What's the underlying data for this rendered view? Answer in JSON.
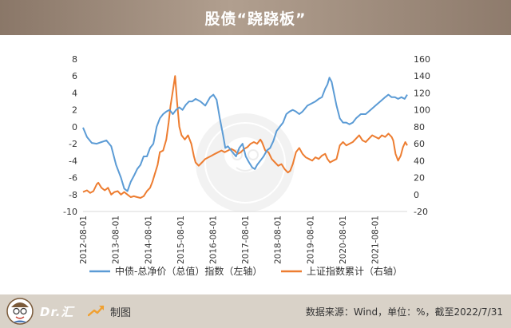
{
  "header": {
    "title": "股债“跷跷板”"
  },
  "footer": {
    "brand": "Dr.汇",
    "made_label": "制图",
    "source": "数据来源：Wind，单位：%，截至2022/7/31"
  },
  "colors": {
    "bond": "#5b9bd5",
    "stock": "#ed7d31",
    "header": "#9c8a7b",
    "footer": "#d9d2c8"
  },
  "chart_data": {
    "type": "line",
    "x_tick_labels": [
      "2012-08-01",
      "2013-08-01",
      "2014-08-01",
      "2015-08-01",
      "2016-08-01",
      "2017-08-01",
      "2018-08-01",
      "2019-08-01",
      "2020-08-01",
      "2021-08-01"
    ],
    "x_range": [
      2012.58,
      2022.58
    ],
    "y_left": {
      "range": [
        -10,
        8
      ],
      "ticks": [
        8,
        6,
        4,
        2,
        0,
        -2,
        -4,
        -6,
        -8,
        -10
      ]
    },
    "y_right": {
      "range": [
        -20,
        160
      ],
      "ticks": [
        160,
        140,
        120,
        100,
        80,
        60,
        40,
        20,
        0,
        -20
      ]
    },
    "grid": false,
    "legend_position": "bottom",
    "series": [
      {
        "name": "中债-总净价（总值）指数（左轴）",
        "axis": "left",
        "color": "#5b9bd5",
        "points": [
          [
            2012.58,
            -0.1
          ],
          [
            2012.7,
            -1.2
          ],
          [
            2012.85,
            -1.9
          ],
          [
            2013.0,
            -2.0
          ],
          [
            2013.15,
            -1.8
          ],
          [
            2013.3,
            -1.6
          ],
          [
            2013.45,
            -2.3
          ],
          [
            2013.6,
            -4.5
          ],
          [
            2013.75,
            -6.0
          ],
          [
            2013.85,
            -7.3
          ],
          [
            2013.95,
            -7.6
          ],
          [
            2014.05,
            -6.5
          ],
          [
            2014.15,
            -5.8
          ],
          [
            2014.25,
            -5.0
          ],
          [
            2014.35,
            -4.5
          ],
          [
            2014.45,
            -3.5
          ],
          [
            2014.55,
            -3.5
          ],
          [
            2014.65,
            -2.5
          ],
          [
            2014.75,
            -2.0
          ],
          [
            2014.85,
            0.0
          ],
          [
            2014.95,
            1.0
          ],
          [
            2015.05,
            1.5
          ],
          [
            2015.15,
            1.8
          ],
          [
            2015.25,
            2.0
          ],
          [
            2015.35,
            1.5
          ],
          [
            2015.45,
            2.0
          ],
          [
            2015.55,
            2.3
          ],
          [
            2015.65,
            2.0
          ],
          [
            2015.75,
            2.6
          ],
          [
            2015.85,
            3.0
          ],
          [
            2015.95,
            3.0
          ],
          [
            2016.05,
            3.3
          ],
          [
            2016.2,
            3.0
          ],
          [
            2016.35,
            2.5
          ],
          [
            2016.5,
            3.5
          ],
          [
            2016.6,
            3.8
          ],
          [
            2016.7,
            3.2
          ],
          [
            2016.8,
            1.0
          ],
          [
            2016.9,
            -1.0
          ],
          [
            2016.97,
            -2.5
          ],
          [
            2017.05,
            -2.3
          ],
          [
            2017.15,
            -2.8
          ],
          [
            2017.3,
            -3.5
          ],
          [
            2017.4,
            -2.5
          ],
          [
            2017.5,
            -2.0
          ],
          [
            2017.6,
            -3.5
          ],
          [
            2017.7,
            -4.2
          ],
          [
            2017.8,
            -4.8
          ],
          [
            2017.88,
            -5.0
          ],
          [
            2017.95,
            -4.5
          ],
          [
            2018.05,
            -4.0
          ],
          [
            2018.15,
            -3.5
          ],
          [
            2018.25,
            -2.8
          ],
          [
            2018.35,
            -2.5
          ],
          [
            2018.45,
            -1.7
          ],
          [
            2018.55,
            -0.5
          ],
          [
            2018.65,
            0.0
          ],
          [
            2018.75,
            0.5
          ],
          [
            2018.85,
            1.5
          ],
          [
            2018.95,
            1.8
          ],
          [
            2019.05,
            2.0
          ],
          [
            2019.15,
            1.8
          ],
          [
            2019.25,
            1.5
          ],
          [
            2019.35,
            1.8
          ],
          [
            2019.5,
            2.5
          ],
          [
            2019.65,
            2.8
          ],
          [
            2019.75,
            3.0
          ],
          [
            2019.85,
            3.3
          ],
          [
            2019.95,
            3.5
          ],
          [
            2020.05,
            4.5
          ],
          [
            2020.12,
            5.0
          ],
          [
            2020.18,
            5.8
          ],
          [
            2020.25,
            5.3
          ],
          [
            2020.32,
            4.0
          ],
          [
            2020.4,
            2.5
          ],
          [
            2020.5,
            1.0
          ],
          [
            2020.6,
            0.5
          ],
          [
            2020.7,
            0.5
          ],
          [
            2020.8,
            0.3
          ],
          [
            2020.9,
            0.5
          ],
          [
            2021.0,
            1.0
          ],
          [
            2021.15,
            1.5
          ],
          [
            2021.3,
            1.5
          ],
          [
            2021.45,
            2.0
          ],
          [
            2021.6,
            2.5
          ],
          [
            2021.75,
            3.0
          ],
          [
            2021.9,
            3.5
          ],
          [
            2022.0,
            3.8
          ],
          [
            2022.1,
            3.5
          ],
          [
            2022.2,
            3.5
          ],
          [
            2022.3,
            3.3
          ],
          [
            2022.4,
            3.5
          ],
          [
            2022.5,
            3.3
          ],
          [
            2022.58,
            3.8
          ]
        ]
      },
      {
        "name": "上证指数累计（右轴）",
        "axis": "right",
        "color": "#ed7d31",
        "points": [
          [
            2012.58,
            3
          ],
          [
            2012.7,
            5
          ],
          [
            2012.8,
            2
          ],
          [
            2012.9,
            4
          ],
          [
            2013.0,
            12
          ],
          [
            2013.05,
            14
          ],
          [
            2013.15,
            8
          ],
          [
            2013.25,
            5
          ],
          [
            2013.35,
            8
          ],
          [
            2013.45,
            0
          ],
          [
            2013.55,
            3
          ],
          [
            2013.65,
            4
          ],
          [
            2013.75,
            0
          ],
          [
            2013.85,
            3
          ],
          [
            2013.95,
            0
          ],
          [
            2014.05,
            -3
          ],
          [
            2014.15,
            -2
          ],
          [
            2014.25,
            -3
          ],
          [
            2014.35,
            -4
          ],
          [
            2014.45,
            -2
          ],
          [
            2014.55,
            4
          ],
          [
            2014.65,
            8
          ],
          [
            2014.72,
            15
          ],
          [
            2014.8,
            25
          ],
          [
            2014.88,
            35
          ],
          [
            2014.95,
            50
          ],
          [
            2015.05,
            52
          ],
          [
            2015.15,
            65
          ],
          [
            2015.22,
            85
          ],
          [
            2015.28,
            105
          ],
          [
            2015.36,
            125
          ],
          [
            2015.42,
            140
          ],
          [
            2015.48,
            110
          ],
          [
            2015.55,
            80
          ],
          [
            2015.62,
            70
          ],
          [
            2015.72,
            65
          ],
          [
            2015.82,
            70
          ],
          [
            2015.92,
            60
          ],
          [
            2016.0,
            45
          ],
          [
            2016.05,
            38
          ],
          [
            2016.15,
            34
          ],
          [
            2016.25,
            38
          ],
          [
            2016.35,
            42
          ],
          [
            2016.45,
            44
          ],
          [
            2016.55,
            46
          ],
          [
            2016.65,
            48
          ],
          [
            2016.75,
            50
          ],
          [
            2016.85,
            52
          ],
          [
            2016.95,
            50
          ],
          [
            2017.05,
            52
          ],
          [
            2017.15,
            54
          ],
          [
            2017.25,
            52
          ],
          [
            2017.35,
            48
          ],
          [
            2017.45,
            50
          ],
          [
            2017.55,
            54
          ],
          [
            2017.65,
            56
          ],
          [
            2017.75,
            60
          ],
          [
            2017.85,
            62
          ],
          [
            2017.95,
            60
          ],
          [
            2018.05,
            65
          ],
          [
            2018.1,
            62
          ],
          [
            2018.2,
            52
          ],
          [
            2018.3,
            50
          ],
          [
            2018.4,
            42
          ],
          [
            2018.5,
            38
          ],
          [
            2018.6,
            34
          ],
          [
            2018.7,
            36
          ],
          [
            2018.8,
            30
          ],
          [
            2018.9,
            26
          ],
          [
            2018.97,
            28
          ],
          [
            2019.05,
            36
          ],
          [
            2019.15,
            50
          ],
          [
            2019.25,
            55
          ],
          [
            2019.35,
            48
          ],
          [
            2019.45,
            44
          ],
          [
            2019.55,
            42
          ],
          [
            2019.65,
            40
          ],
          [
            2019.75,
            44
          ],
          [
            2019.85,
            42
          ],
          [
            2019.95,
            46
          ],
          [
            2020.05,
            48
          ],
          [
            2020.12,
            42
          ],
          [
            2020.2,
            38
          ],
          [
            2020.3,
            40
          ],
          [
            2020.4,
            42
          ],
          [
            2020.5,
            58
          ],
          [
            2020.6,
            62
          ],
          [
            2020.7,
            58
          ],
          [
            2020.8,
            60
          ],
          [
            2020.9,
            62
          ],
          [
            2021.0,
            66
          ],
          [
            2021.1,
            70
          ],
          [
            2021.2,
            64
          ],
          [
            2021.3,
            62
          ],
          [
            2021.4,
            66
          ],
          [
            2021.5,
            70
          ],
          [
            2021.6,
            68
          ],
          [
            2021.7,
            66
          ],
          [
            2021.8,
            70
          ],
          [
            2021.9,
            68
          ],
          [
            2022.0,
            72
          ],
          [
            2022.1,
            68
          ],
          [
            2022.15,
            64
          ],
          [
            2022.22,
            48
          ],
          [
            2022.3,
            40
          ],
          [
            2022.38,
            46
          ],
          [
            2022.45,
            56
          ],
          [
            2022.52,
            62
          ],
          [
            2022.58,
            58
          ]
        ]
      }
    ]
  }
}
